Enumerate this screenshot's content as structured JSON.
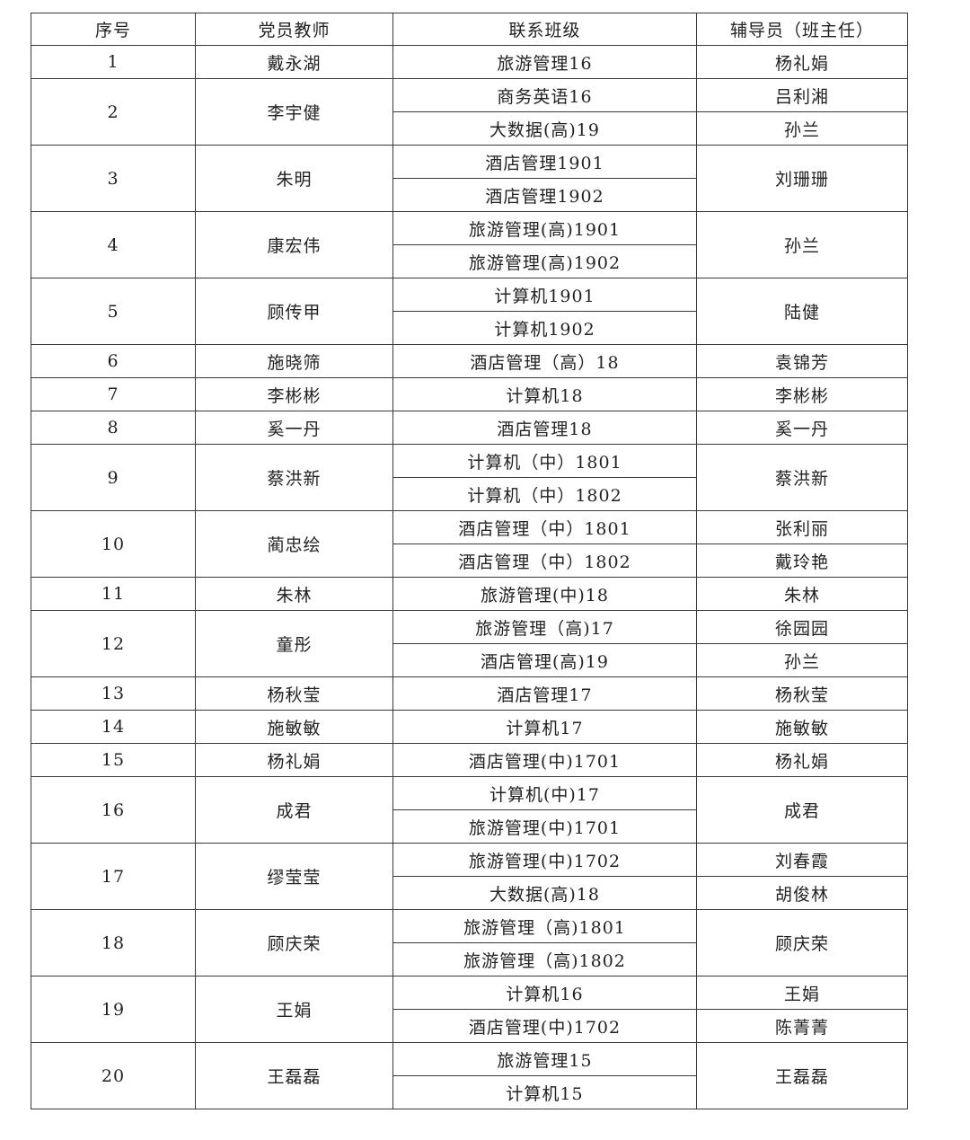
{
  "header": [
    "序号",
    "党员教师",
    "联系班级",
    "辅导员（班主任）"
  ],
  "rows": [
    {
      "no": "1",
      "teacher": "戴永湖",
      "classes": [
        "旅游管理16"
      ],
      "counselors": [
        {
          "name": "杨礼娟",
          "span": 1
        }
      ]
    },
    {
      "no": "2",
      "teacher": "李宇健",
      "classes": [
        "商务英语16",
        "大数据(高)19"
      ],
      "counselors": [
        {
          "name": "吕利湘",
          "span": 1
        },
        {
          "name": "孙兰",
          "span": 1
        }
      ]
    },
    {
      "no": "3",
      "teacher": "朱明",
      "classes": [
        "酒店管理1901",
        "酒店管理1902"
      ],
      "counselors": [
        {
          "name": "刘珊珊",
          "span": 2
        }
      ]
    },
    {
      "no": "4",
      "teacher": "康宏伟",
      "classes": [
        "旅游管理(高)1901",
        "旅游管理(高)1902"
      ],
      "counselors": [
        {
          "name": "孙兰",
          "span": 2
        }
      ]
    },
    {
      "no": "5",
      "teacher": "顾传甲",
      "classes": [
        "计算机1901",
        "计算机1902"
      ],
      "counselors": [
        {
          "name": "陆健",
          "span": 2
        }
      ]
    },
    {
      "no": "6",
      "teacher": "施晓筛",
      "classes": [
        "酒店管理（高）18"
      ],
      "counselors": [
        {
          "name": "袁锦芳",
          "span": 1
        }
      ]
    },
    {
      "no": "7",
      "teacher": "李彬彬",
      "classes": [
        "计算机18"
      ],
      "counselors": [
        {
          "name": "李彬彬",
          "span": 1
        }
      ]
    },
    {
      "no": "8",
      "teacher": "奚一丹",
      "classes": [
        "酒店管理18"
      ],
      "counselors": [
        {
          "name": "奚一丹",
          "span": 1
        }
      ]
    },
    {
      "no": "9",
      "teacher": "蔡洪新",
      "classes": [
        "计算机（中）1801",
        "计算机（中）1802"
      ],
      "counselors": [
        {
          "name": "蔡洪新",
          "span": 2
        }
      ]
    },
    {
      "no": "10",
      "teacher": "蔺忠绘",
      "classes": [
        "酒店管理（中）1801",
        "酒店管理（中）1802"
      ],
      "counselors": [
        {
          "name": "张利丽",
          "span": 1
        },
        {
          "name": "戴玲艳",
          "span": 1
        }
      ]
    },
    {
      "no": "11",
      "teacher": "朱林",
      "classes": [
        "旅游管理(中)18"
      ],
      "counselors": [
        {
          "name": "朱林",
          "span": 1
        }
      ]
    },
    {
      "no": "12",
      "teacher": "童彤",
      "classes": [
        "旅游管理（高)17",
        "酒店管理(高)19"
      ],
      "counselors": [
        {
          "name": "徐园园",
          "span": 1
        },
        {
          "name": "孙兰",
          "span": 1
        }
      ]
    },
    {
      "no": "13",
      "teacher": "杨秋莹",
      "classes": [
        "酒店管理17"
      ],
      "counselors": [
        {
          "name": "杨秋莹",
          "span": 1
        }
      ]
    },
    {
      "no": "14",
      "teacher": "施敏敏",
      "classes": [
        "计算机17"
      ],
      "counselors": [
        {
          "name": "施敏敏",
          "span": 1
        }
      ]
    },
    {
      "no": "15",
      "teacher": "杨礼娟",
      "classes": [
        "酒店管理(中)1701"
      ],
      "counselors": [
        {
          "name": "杨礼娟",
          "span": 1
        }
      ]
    },
    {
      "no": "16",
      "teacher": "成君",
      "classes": [
        "计算机(中)17",
        "旅游管理(中)1701"
      ],
      "counselors": [
        {
          "name": "成君",
          "span": 2
        }
      ]
    },
    {
      "no": "17",
      "teacher": "缪莹莹",
      "classes": [
        "旅游管理(中)1702",
        "大数据(高)18"
      ],
      "counselors": [
        {
          "name": "刘春霞",
          "span": 1
        },
        {
          "name": "胡俊林",
          "span": 1
        }
      ]
    },
    {
      "no": "18",
      "teacher": "顾庆荣",
      "classes": [
        "旅游管理（高)1801",
        "旅游管理（高)1802"
      ],
      "counselors": [
        {
          "name": "顾庆荣",
          "span": 2
        }
      ]
    },
    {
      "no": "19",
      "teacher": "王娟",
      "classes": [
        "计算机16",
        "酒店管理(中)1702"
      ],
      "counselors": [
        {
          "name": "王娟",
          "span": 1
        },
        {
          "name": "陈菁菁",
          "span": 1
        }
      ]
    },
    {
      "no": "20",
      "teacher": "王磊磊",
      "classes": [
        "旅游管理15",
        "计算机15"
      ],
      "counselors": [
        {
          "name": "王磊磊",
          "span": 2
        }
      ]
    }
  ]
}
